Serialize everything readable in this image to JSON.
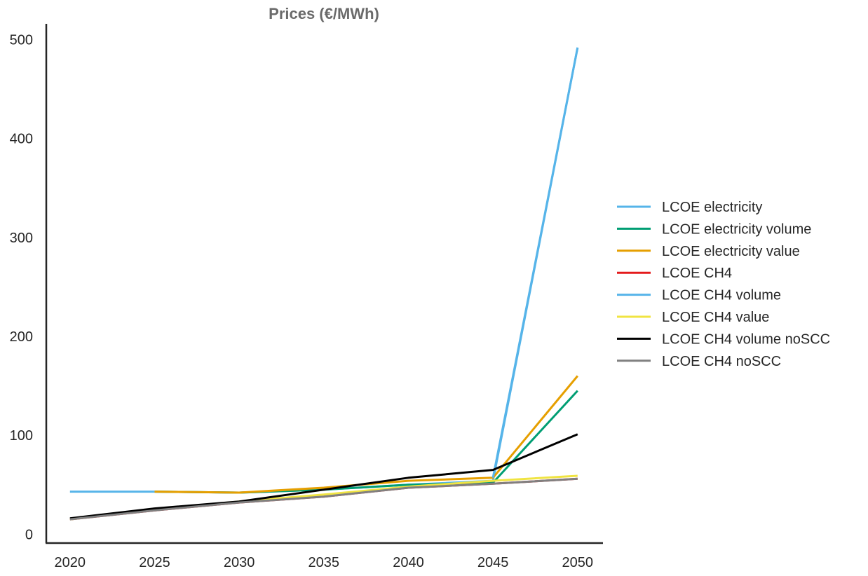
{
  "chart_data": {
    "type": "line",
    "title": "Prices (€/MWh)",
    "xlabel": "",
    "ylabel": "",
    "x": [
      2020,
      2025,
      2030,
      2035,
      2040,
      2045,
      2050
    ],
    "x_tick_labels": [
      "2020",
      "2025",
      "2030",
      "2035",
      "2040",
      "2045",
      "2050"
    ],
    "y_ticks": [
      0,
      100,
      200,
      300,
      400,
      500
    ],
    "y_tick_labels": [
      "0",
      "100",
      "200",
      "300",
      "400",
      "500"
    ],
    "xlim": [
      2018.6,
      2051.5
    ],
    "ylim": [
      -9,
      516
    ],
    "grid": false,
    "legend_position": "right",
    "series": [
      {
        "name": "LCOE electricity",
        "color": "#56b4e9",
        "values": [
          43,
          43,
          42,
          45,
          50,
          54,
          492
        ]
      },
      {
        "name": "LCOE electricity volume",
        "color": "#009e73",
        "values": [
          null,
          43,
          42,
          45,
          50,
          52,
          145
        ]
      },
      {
        "name": "LCOE electricity value",
        "color": "#e69f00",
        "values": [
          null,
          43,
          42,
          47,
          54,
          57,
          160
        ]
      },
      {
        "name": "LCOE CH4",
        "color": "#e41a1c",
        "values": [
          15,
          24,
          32,
          38,
          47,
          51,
          56
        ]
      },
      {
        "name": "LCOE CH4 volume",
        "color": "#56b4e9",
        "values": [
          null,
          null,
          null,
          null,
          null,
          57,
          492
        ]
      },
      {
        "name": "LCOE CH4 value",
        "color": "#f0e442",
        "values": [
          15,
          25,
          33,
          40,
          48,
          54,
          59
        ]
      },
      {
        "name": "LCOE CH4 volume noSCC",
        "color": "#000000",
        "values": [
          16,
          26,
          33,
          45,
          57,
          65,
          101
        ]
      },
      {
        "name": "LCOE CH4 noSCC",
        "color": "#808080",
        "values": [
          15,
          24,
          32,
          38,
          47,
          51,
          56
        ]
      }
    ]
  }
}
